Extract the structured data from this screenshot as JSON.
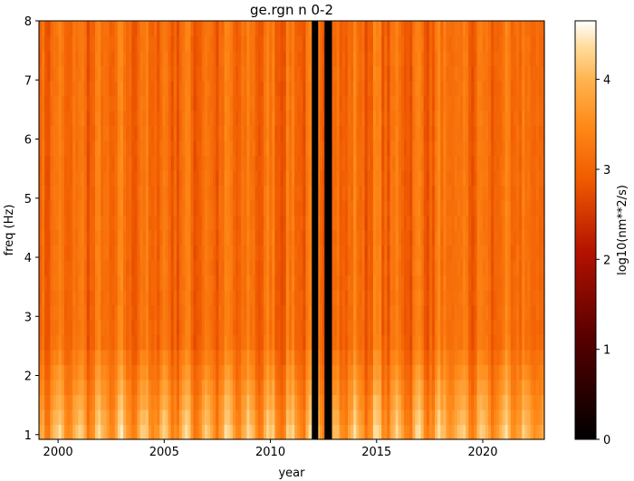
{
  "chart_data": {
    "type": "heatmap",
    "title": "ge.rgn n 0-2",
    "xlabel": "year",
    "ylabel": "freq (Hz)",
    "colorbar_label": "log10(nm**2/s)",
    "colormap": "gist_heat",
    "xlim": [
      1999.1,
      2022.9
    ],
    "ylim": [
      0.92,
      8.0
    ],
    "clim": [
      0,
      4.65
    ],
    "x_ticks": [
      2000,
      2005,
      2010,
      2015,
      2020
    ],
    "x_tick_labels": [
      "2000",
      "2005",
      "2010",
      "2015",
      "2020"
    ],
    "y_ticks": [
      1,
      2,
      3,
      4,
      5,
      6,
      7,
      8
    ],
    "y_tick_labels": [
      "1",
      "2",
      "3",
      "4",
      "5",
      "6",
      "7",
      "8"
    ],
    "colorbar_ticks": [
      0,
      1,
      2,
      3,
      4
    ],
    "colorbar_tick_labels": [
      "0",
      "1",
      "2",
      "3",
      "4"
    ],
    "data_gaps": [
      [
        2011.95,
        2012.25
      ],
      [
        2012.55,
        2012.9
      ]
    ],
    "typical_values": {
      "high_freq_band": 3.1,
      "low_freq_band": 3.9,
      "seasonal_peak": 4.3,
      "seasonal_trough": 2.8
    },
    "seasonal_peaks_years": [
      2000.0,
      2001.0,
      2002.0,
      2003.0,
      2004.0,
      2005.0,
      2006.0,
      2007.0,
      2008.0,
      2009.0,
      2010.0,
      2011.0,
      2013.0,
      2014.0,
      2015.0,
      2016.0,
      2017.0,
      2018.0,
      2019.0,
      2020.0,
      2021.0,
      2022.0
    ]
  }
}
